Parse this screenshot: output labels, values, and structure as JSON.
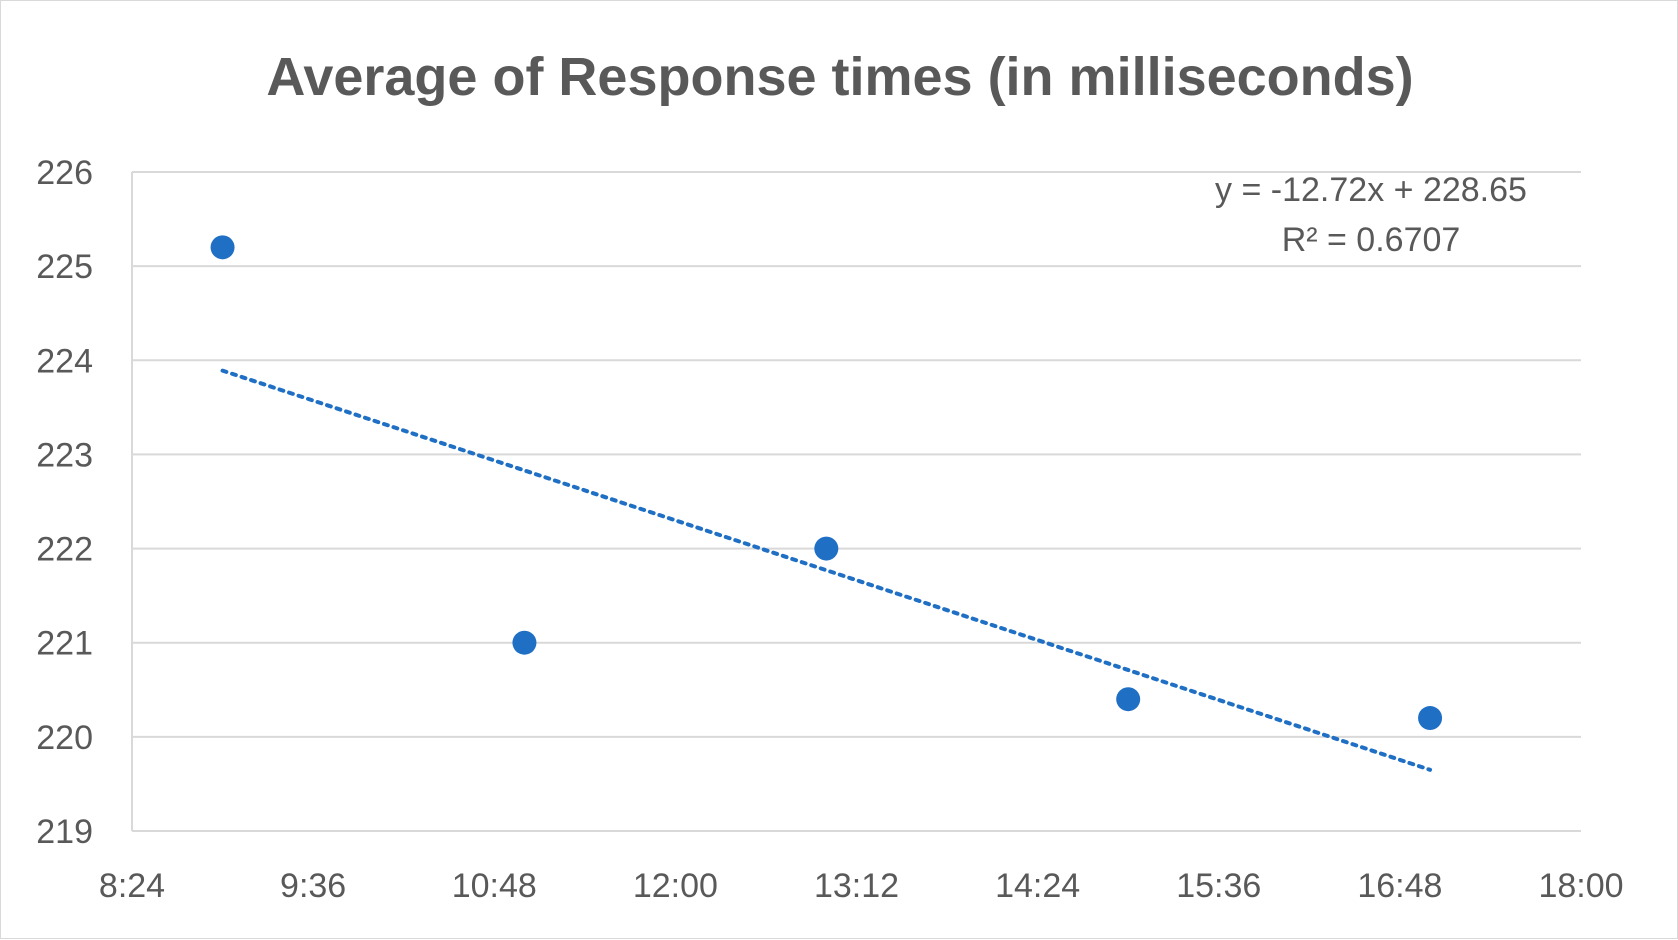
{
  "chart_data": {
    "type": "scatter",
    "title": "Average of Response times (in milliseconds)",
    "xlabel": "",
    "ylabel": "",
    "x_ticks": [
      "8:24",
      "9:36",
      "10:48",
      "12:00",
      "13:12",
      "14:24",
      "15:36",
      "16:48",
      "18:00"
    ],
    "y_ticks": [
      "219",
      "220",
      "221",
      "222",
      "223",
      "224",
      "225",
      "226"
    ],
    "xlim": [
      "8:24",
      "18:00"
    ],
    "ylim": [
      219,
      226
    ],
    "grid": "horizontal",
    "legend": "none",
    "series": [
      {
        "x": [
          "9:00",
          "11:00",
          "13:00",
          "15:00",
          "17:00"
        ],
        "y": [
          225.2,
          221.0,
          222.0,
          220.4,
          220.2
        ],
        "color": "#1f6fc5"
      }
    ],
    "trendline": {
      "type": "linear",
      "style": "dotted",
      "color": "#1f6fc5",
      "equation": "y = -12.72x + 228.65",
      "r_squared": "R² = 0.6707",
      "from": [
        "9:00",
        223.89
      ],
      "to": [
        "17:00",
        219.65
      ]
    }
  }
}
